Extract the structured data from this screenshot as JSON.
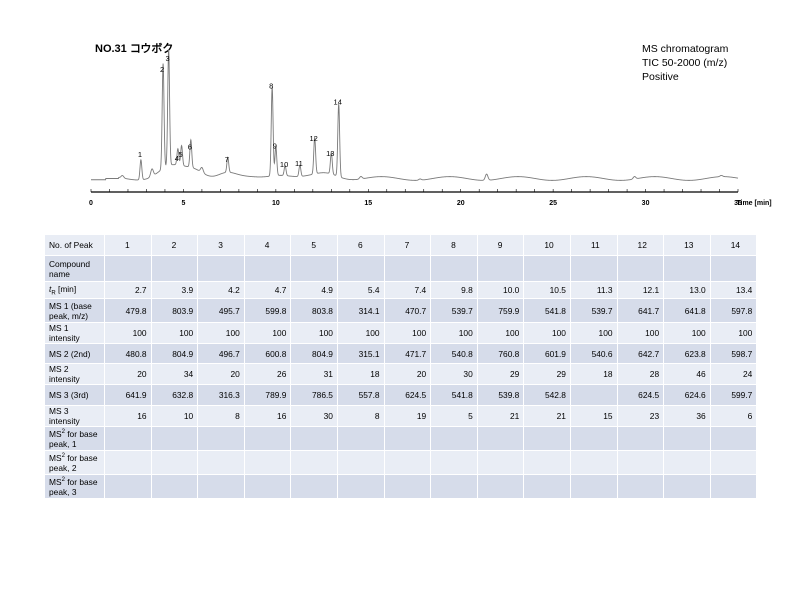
{
  "title": "NO.31 コウボク",
  "info": [
    "MS chromatogram",
    "TIC 50-2000 (m/z)",
    "Positive"
  ],
  "chart_data": {
    "type": "line",
    "xlabel": "Time [min]",
    "xlim": [
      0,
      35
    ],
    "x_ticks": [
      0,
      5,
      10,
      15,
      20,
      25,
      30,
      35
    ],
    "peaks": [
      {
        "label": "1",
        "x": 2.7,
        "y": 0.16
      },
      {
        "label": "2",
        "x": 3.9,
        "y": 0.84
      },
      {
        "label": "3",
        "x": 4.2,
        "y": 0.93
      },
      {
        "label": "4",
        "x": 4.7,
        "y": 0.13
      },
      {
        "label": "5",
        "x": 4.9,
        "y": 0.16
      },
      {
        "label": "6",
        "x": 5.4,
        "y": 0.22
      },
      {
        "label": "7",
        "x": 7.4,
        "y": 0.12
      },
      {
        "label": "8",
        "x": 9.8,
        "y": 0.71
      },
      {
        "label": "9",
        "x": 10.0,
        "y": 0.23
      },
      {
        "label": "10",
        "x": 10.5,
        "y": 0.08
      },
      {
        "label": "11",
        "x": 11.3,
        "y": 0.09
      },
      {
        "label": "12",
        "x": 12.1,
        "y": 0.29
      },
      {
        "label": "13",
        "x": 13.0,
        "y": 0.17
      },
      {
        "label": "14",
        "x": 13.4,
        "y": 0.58
      }
    ],
    "minor_peaks": [
      {
        "x": 1.7,
        "y": 0.02
      },
      {
        "x": 3.3,
        "y": 0.06
      },
      {
        "x": 6.0,
        "y": 0.04
      },
      {
        "x": 14.6,
        "y": 0.02
      },
      {
        "x": 17.8,
        "y": 0.01
      },
      {
        "x": 21.4,
        "y": 0.05
      },
      {
        "x": 29.4,
        "y": 0.02
      },
      {
        "x": 34.1,
        "y": 0.01
      }
    ]
  },
  "table": {
    "header": "No. of Peak",
    "peak_numbers": [
      "1",
      "2",
      "3",
      "4",
      "5",
      "6",
      "7",
      "8",
      "9",
      "10",
      "11",
      "12",
      "13",
      "14"
    ],
    "rows": [
      {
        "label": "Compound name",
        "values": [
          "",
          "",
          "",
          "",
          "",
          "",
          "",
          "",
          "",
          "",
          "",
          "",
          "",
          ""
        ]
      },
      {
        "label_prefix": "t",
        "label_sub": "R",
        "label_suffix": " [min]",
        "values": [
          "2.7",
          "3.9",
          "4.2",
          "4.7",
          "4.9",
          "5.4",
          "7.4",
          "9.8",
          "10.0",
          "10.5",
          "11.3",
          "12.1",
          "13.0",
          "13.4"
        ]
      },
      {
        "label": "MS 1 (base peak, m/z)",
        "values": [
          "479.8",
          "803.9",
          "495.7",
          "599.8",
          "803.8",
          "314.1",
          "470.7",
          "539.7",
          "759.9",
          "541.8",
          "539.7",
          "641.7",
          "641.8",
          "597.8"
        ]
      },
      {
        "label": "MS 1 intensity",
        "values": [
          "100",
          "100",
          "100",
          "100",
          "100",
          "100",
          "100",
          "100",
          "100",
          "100",
          "100",
          "100",
          "100",
          "100"
        ]
      },
      {
        "label": "MS 2 (2nd)",
        "values": [
          "480.8",
          "804.9",
          "496.7",
          "600.8",
          "804.9",
          "315.1",
          "471.7",
          "540.8",
          "760.8",
          "601.9",
          "540.6",
          "642.7",
          "623.8",
          "598.7"
        ]
      },
      {
        "label": "MS 2 intensity",
        "values": [
          "20",
          "34",
          "20",
          "26",
          "31",
          "18",
          "20",
          "30",
          "29",
          "29",
          "18",
          "28",
          "46",
          "24"
        ]
      },
      {
        "label": "MS 3 (3rd)",
        "values": [
          "641.9",
          "632.8",
          "316.3",
          "789.9",
          "786.5",
          "557.8",
          "624.5",
          "541.8",
          "539.8",
          "542.8",
          "",
          "624.5",
          "624.6",
          "599.7"
        ]
      },
      {
        "label": "MS 3 intensity",
        "values": [
          "16",
          "10",
          "8",
          "16",
          "30",
          "8",
          "19",
          "5",
          "21",
          "21",
          "15",
          "23",
          "36",
          "6"
        ]
      },
      {
        "label_prefix": "MS",
        "label_sup": "2",
        "label_suffix": " for base peak, 1",
        "values": [
          "",
          "",
          "",
          "",
          "",
          "",
          "",
          "",
          "",
          "",
          "",
          "",
          "",
          ""
        ]
      },
      {
        "label_prefix": "MS",
        "label_sup": "2",
        "label_suffix": " for base peak, 2",
        "values": [
          "",
          "",
          "",
          "",
          "",
          "",
          "",
          "",
          "",
          "",
          "",
          "",
          "",
          ""
        ]
      },
      {
        "label_prefix": "MS",
        "label_sup": "2",
        "label_suffix": " for base peak, 3",
        "values": [
          "",
          "",
          "",
          "",
          "",
          "",
          "",
          "",
          "",
          "",
          "",
          "",
          "",
          ""
        ]
      }
    ]
  }
}
